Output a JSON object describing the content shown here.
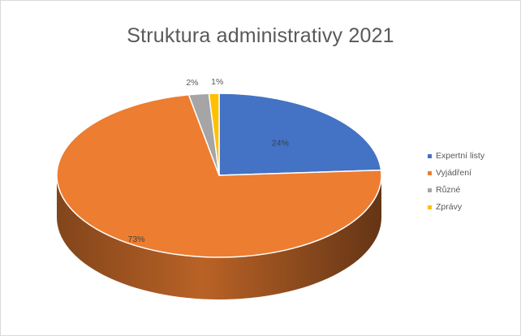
{
  "chart_data": {
    "type": "pie",
    "title": "Struktura administrativy 2021",
    "categories": [
      "Expertní listy",
      "Vyjádření",
      "Různé",
      "Zprávy"
    ],
    "values": [
      24,
      73,
      2,
      1
    ],
    "data_labels": [
      "24%",
      "73%",
      "2%",
      "1%"
    ],
    "colors": [
      "#4472c4",
      "#ed7d31",
      "#a5a5a5",
      "#ffc000"
    ],
    "legend_position": "right",
    "style": "3d-pie"
  }
}
